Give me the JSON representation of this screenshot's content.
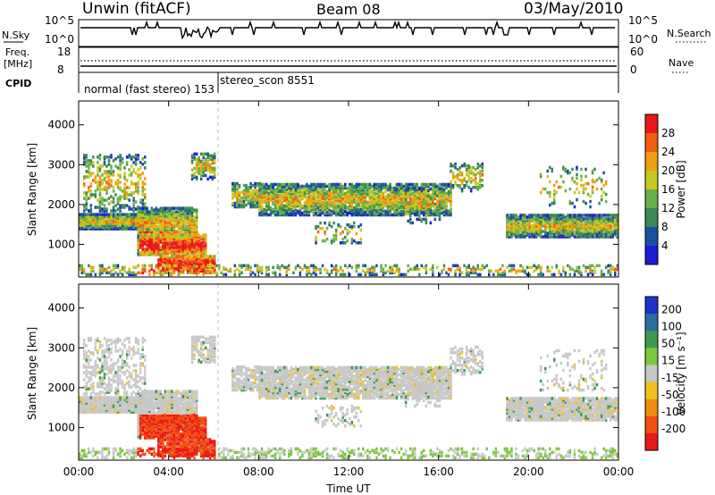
{
  "header": {
    "station": "Unwin (fitACF)",
    "beam": "Beam 08",
    "date": "03/May/2010"
  },
  "strips": {
    "nsky_label": "N.Sky",
    "nsky_ticks": [
      "10^5",
      "10^0"
    ],
    "nsearch_label": "N.Search",
    "nsearch_ticks": [
      "10^5",
      "10^0"
    ],
    "freq_label": "Freq.",
    "freq_unit": "[MHz]",
    "freq_ticks": [
      "18",
      "8"
    ],
    "nave_label": "Nave",
    "nave_ticks": [
      "60",
      "0"
    ],
    "cpid_label": "CPID",
    "cpid_mode1": "normal (fast stereo) 153",
    "cpid_mode2": "stereo_scon 8551"
  },
  "chart_data": [
    {
      "type": "heatmap",
      "name": "power",
      "ylabel": "Slant Range [km]",
      "xlabel": "",
      "ylim": [
        180,
        4600
      ],
      "yticks": [
        "1000",
        "2000",
        "3000",
        "4000"
      ],
      "xticks": [
        "00:00",
        "04:00",
        "08:00",
        "12:00",
        "16:00",
        "20:00",
        "00:00"
      ],
      "colorbar_label": "Power [dB]",
      "colorbar_ticks": [
        "4",
        "8",
        "12",
        "16",
        "20",
        "24",
        "28"
      ],
      "colors": [
        "#1c1cd2",
        "#1a4fa0",
        "#3a8a54",
        "#6ab04a",
        "#c8c81e",
        "#f0a010",
        "#f06010",
        "#e81818"
      ]
    },
    {
      "type": "heatmap",
      "name": "velocity",
      "ylabel": "Slant Range [km]",
      "xlabel": "Time UT",
      "ylim": [
        180,
        4600
      ],
      "yticks": [
        "1000",
        "2000",
        "3000",
        "4000"
      ],
      "xticks": [
        "00:00",
        "04:00",
        "08:00",
        "12:00",
        "16:00",
        "20:00",
        "00:00"
      ],
      "colorbar_label": "Velocity [m s⁻¹]",
      "colorbar_ticks": [
        "200",
        "100",
        "50",
        "15",
        "-15",
        "-50",
        "-100",
        "-200"
      ],
      "colors": [
        "#1c32c8",
        "#2c6ea0",
        "#3c9a50",
        "#7cc83c",
        "#c8c8c8",
        "#f0c020",
        "#f08c10",
        "#f05010",
        "#e81818"
      ]
    }
  ]
}
